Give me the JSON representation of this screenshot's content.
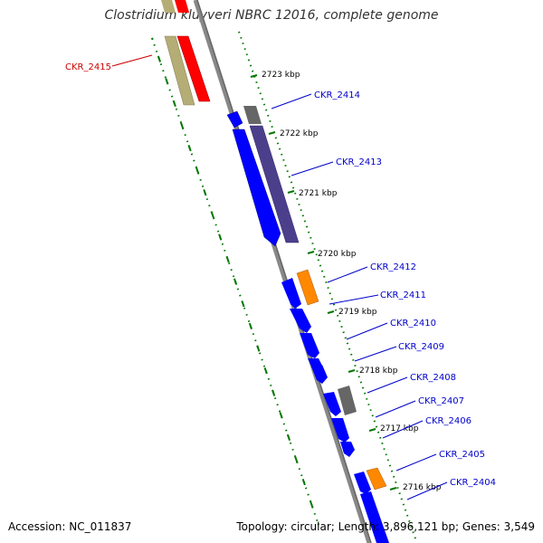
{
  "title": "Clostridium kluyveri NBRC 12016, complete genome",
  "accession": "Accession: NC_011837",
  "stats": "Topology: circular; Length: 3,896,121 bp; Genes: 3,549",
  "colors": {
    "forward_cds": "#0000ff",
    "reverse_cds": "#ff0000",
    "rna": "#ff8800",
    "pseudo": "#666666",
    "homolog_fwd": "#4b3f8c",
    "homolog_rev": "#b5ad76",
    "backbone": "#888888",
    "ticks": "#007700",
    "label_fwd": "#0000cc",
    "label_rev": "#cc0000"
  },
  "scale_labels": [
    "2723 kbp",
    "2722 kbp",
    "2721 kbp",
    "2720 kbp",
    "2719 kbp",
    "2718 kbp",
    "2717 kbp",
    "2716 kbp"
  ],
  "gene_labels": [
    {
      "text": "CKR_2415",
      "strand": "rev"
    },
    {
      "text": "CKR_2414",
      "strand": "fwd"
    },
    {
      "text": "CKR_2413",
      "strand": "fwd"
    },
    {
      "text": "CKR_2412",
      "strand": "fwd"
    },
    {
      "text": "CKR_2411",
      "strand": "fwd"
    },
    {
      "text": "CKR_2410",
      "strand": "fwd"
    },
    {
      "text": "CKR_2409",
      "strand": "fwd"
    },
    {
      "text": "CKR_2408",
      "strand": "fwd"
    },
    {
      "text": "CKR_2407",
      "strand": "fwd"
    },
    {
      "text": "CKR_2406",
      "strand": "fwd"
    },
    {
      "text": "CKR_2405",
      "strand": "fwd"
    },
    {
      "text": "CKR_2404",
      "strand": "fwd"
    }
  ]
}
